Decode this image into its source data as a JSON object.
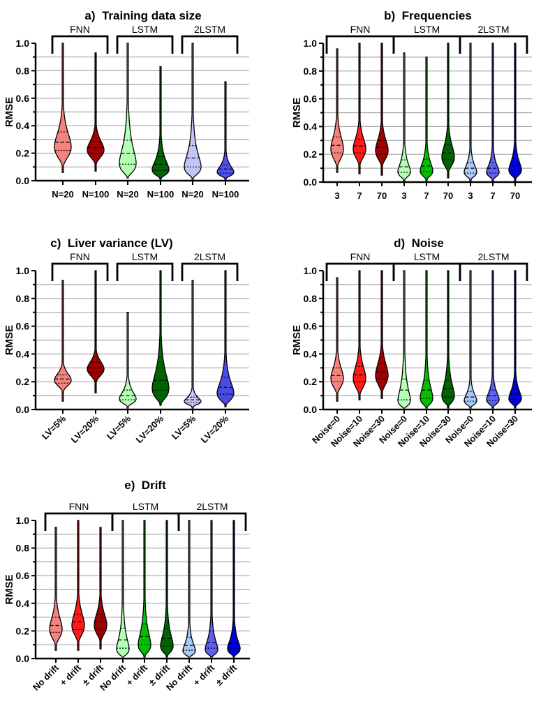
{
  "chart_data": [
    {
      "type": "violin",
      "title": "a)  Training data size",
      "ylabel": "RMSE",
      "ylim": [
        0,
        1.0
      ],
      "yticks": [
        "0.0",
        "0.2",
        "0.4",
        "0.6",
        "0.8",
        "1.0"
      ],
      "grid": true,
      "groups": [
        "FNN",
        "LSTM",
        "2LSTM"
      ],
      "categories": [
        "N=20",
        "N=100",
        "N=20",
        "N=100",
        "N=20",
        "N=100"
      ],
      "colors": [
        "#f4837d",
        "#a00000",
        "#b3ffb3",
        "#006400",
        "#c4c4f8",
        "#5050f0"
      ],
      "median": [
        0.28,
        0.24,
        0.2,
        0.12,
        0.165,
        0.085
      ],
      "q1": [
        0.22,
        0.2,
        0.12,
        0.075,
        0.1,
        0.055
      ],
      "q3": [
        0.355,
        0.285,
        0.295,
        0.175,
        0.255,
        0.115
      ],
      "min": [
        0.06,
        0.07,
        0.02,
        0.01,
        0.01,
        0.01
      ],
      "max": [
        1.0,
        0.93,
        1.0,
        0.83,
        1.0,
        0.72
      ]
    },
    {
      "type": "violin",
      "title": "b)  Frequencies",
      "ylabel": "RMSE",
      "ylim": [
        0,
        1.0
      ],
      "yticks": [
        "0.0",
        "0.2",
        "0.4",
        "0.6",
        "0.8",
        "1.0"
      ],
      "grid": true,
      "groups": [
        "FNN",
        "LSTM",
        "2LSTM"
      ],
      "categories": [
        "3",
        "7",
        "70",
        "3",
        "7",
        "70",
        "3",
        "7",
        "70"
      ],
      "colors": [
        "#f4837d",
        "#ff1a1a",
        "#a00000",
        "#b3ffb3",
        "#00c000",
        "#006400",
        "#a9c8f5",
        "#6060f0",
        "#0000e0"
      ],
      "median": [
        0.265,
        0.26,
        0.25,
        0.11,
        0.115,
        0.21,
        0.1,
        0.1,
        0.12
      ],
      "q1": [
        0.21,
        0.21,
        0.2,
        0.07,
        0.075,
        0.16,
        0.065,
        0.065,
        0.08
      ],
      "q3": [
        0.325,
        0.31,
        0.3,
        0.16,
        0.165,
        0.27,
        0.14,
        0.14,
        0.17
      ],
      "min": [
        0.07,
        0.06,
        0.05,
        0.01,
        0.01,
        0.03,
        0.01,
        0.01,
        0.01
      ],
      "max": [
        0.96,
        1.0,
        1.0,
        0.93,
        0.9,
        1.0,
        1.0,
        1.0,
        1.0
      ]
    },
    {
      "type": "violin",
      "title": "c)  Liver variance (LV)",
      "ylabel": "RMSE",
      "ylim": [
        0,
        1.0
      ],
      "yticks": [
        "0.0",
        "0.2",
        "0.4",
        "0.6",
        "0.8",
        "1.0"
      ],
      "grid": true,
      "groups": [
        "FNN",
        "LSTM",
        "2LSTM"
      ],
      "categories": [
        "LV=5%",
        "LV=20%",
        "LV=5%",
        "LV=20%",
        "LV=5%",
        "LV=20%"
      ],
      "colors": [
        "#f4837d",
        "#a00000",
        "#b3ffb3",
        "#006400",
        "#c4c4f8",
        "#4a4ae8"
      ],
      "median": [
        0.22,
        0.3,
        0.1,
        0.21,
        0.07,
        0.16
      ],
      "q1": [
        0.19,
        0.27,
        0.07,
        0.14,
        0.05,
        0.11
      ],
      "q3": [
        0.25,
        0.34,
        0.14,
        0.3,
        0.09,
        0.23
      ],
      "min": [
        0.06,
        0.12,
        0.01,
        0.03,
        0.01,
        0.02
      ],
      "max": [
        0.93,
        1.0,
        0.7,
        1.0,
        0.93,
        1.0
      ]
    },
    {
      "type": "violin",
      "title": "d)  Noise",
      "ylabel": "RMSE",
      "ylim": [
        0,
        1.0
      ],
      "yticks": [
        "0.0",
        "0.2",
        "0.4",
        "0.6",
        "0.8",
        "1.0"
      ],
      "grid": true,
      "groups": [
        "FNN",
        "LSTM",
        "2LSTM"
      ],
      "categories": [
        "Noise=0",
        "Noise=10",
        "Noise=30",
        "Noise=0",
        "Noise=10",
        "Noise=30",
        "Noise=0",
        "Noise=10",
        "Noise=30"
      ],
      "colors": [
        "#f4837d",
        "#ff1a1a",
        "#a00000",
        "#b3ffb3",
        "#00c000",
        "#006400",
        "#a9c8f5",
        "#6060f0",
        "#0000e0"
      ],
      "median": [
        0.245,
        0.25,
        0.27,
        0.14,
        0.14,
        0.15,
        0.09,
        0.1,
        0.11
      ],
      "q1": [
        0.2,
        0.2,
        0.22,
        0.07,
        0.08,
        0.09,
        0.06,
        0.065,
        0.07
      ],
      "q3": [
        0.3,
        0.31,
        0.33,
        0.22,
        0.21,
        0.21,
        0.13,
        0.14,
        0.15
      ],
      "min": [
        0.06,
        0.07,
        0.08,
        0.01,
        0.01,
        0.01,
        0.01,
        0.01,
        0.01
      ],
      "max": [
        0.95,
        1.0,
        1.0,
        1.0,
        1.0,
        1.0,
        1.0,
        1.0,
        1.0
      ]
    },
    {
      "type": "violin",
      "title": "e)  Drift",
      "ylabel": "RMSE",
      "ylim": [
        0,
        1.0
      ],
      "yticks": [
        "0.0",
        "0.2",
        "0.4",
        "0.6",
        "0.8",
        "1.0"
      ],
      "grid": true,
      "groups": [
        "FNN",
        "LSTM",
        "2LSTM"
      ],
      "categories": [
        "No drift",
        "+ drift",
        "± drift",
        "No drift",
        "+ drift",
        "± drift",
        "No drift",
        "+ drift",
        "± drift"
      ],
      "colors": [
        "#f4837d",
        "#ff1a1a",
        "#a00000",
        "#b3ffb3",
        "#00c000",
        "#006400",
        "#a9c8f5",
        "#6060f0",
        "#0000e0"
      ],
      "median": [
        0.24,
        0.265,
        0.265,
        0.135,
        0.16,
        0.145,
        0.095,
        0.115,
        0.11
      ],
      "q1": [
        0.19,
        0.21,
        0.215,
        0.075,
        0.1,
        0.09,
        0.06,
        0.075,
        0.075
      ],
      "q3": [
        0.3,
        0.32,
        0.32,
        0.22,
        0.25,
        0.22,
        0.155,
        0.2,
        0.18
      ],
      "min": [
        0.06,
        0.06,
        0.07,
        0.01,
        0.01,
        0.01,
        0.01,
        0.01,
        0.01
      ],
      "max": [
        0.95,
        1.0,
        0.95,
        1.0,
        1.0,
        1.0,
        1.0,
        1.0,
        1.0
      ]
    }
  ]
}
